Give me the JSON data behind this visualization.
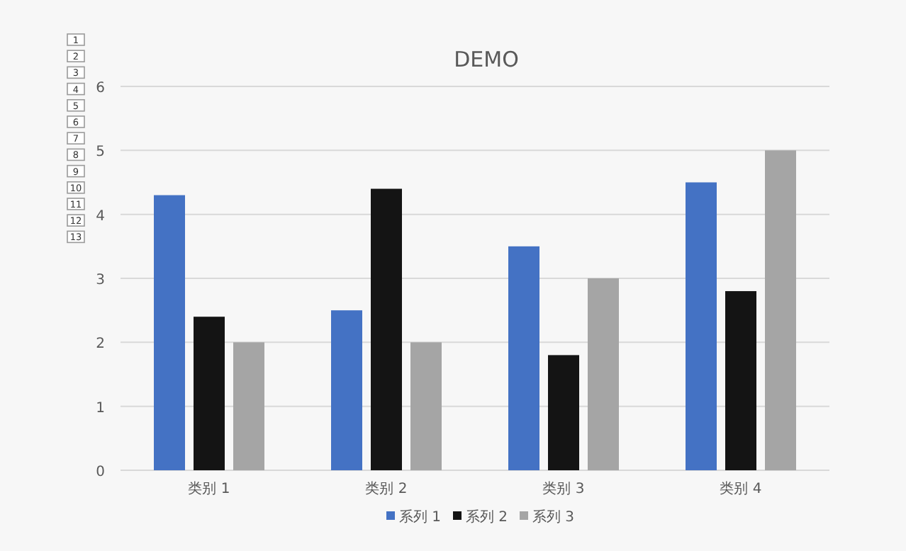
{
  "chart_data": {
    "type": "bar",
    "title": "DEMO",
    "categories": [
      "类别 1",
      "类别 2",
      "类别 3",
      "类别 4"
    ],
    "series": [
      {
        "name": "系列 1",
        "color": "#4472c4",
        "values": [
          4.3,
          2.5,
          3.5,
          4.5
        ]
      },
      {
        "name": "系列 2",
        "color": "#141414",
        "values": [
          2.4,
          4.4,
          1.8,
          2.8
        ]
      },
      {
        "name": "系列 3",
        "color": "#a5a5a5",
        "values": [
          2,
          2,
          3,
          5
        ]
      }
    ],
    "ylim": [
      0,
      6
    ],
    "yticks": [
      0,
      1,
      2,
      3,
      4,
      5,
      6
    ],
    "grid": "y",
    "legend": "bottom",
    "annotations": [
      "1",
      "2",
      "3",
      "4",
      "5",
      "6",
      "7",
      "8",
      "9",
      "10",
      "11",
      "12",
      "13"
    ]
  }
}
